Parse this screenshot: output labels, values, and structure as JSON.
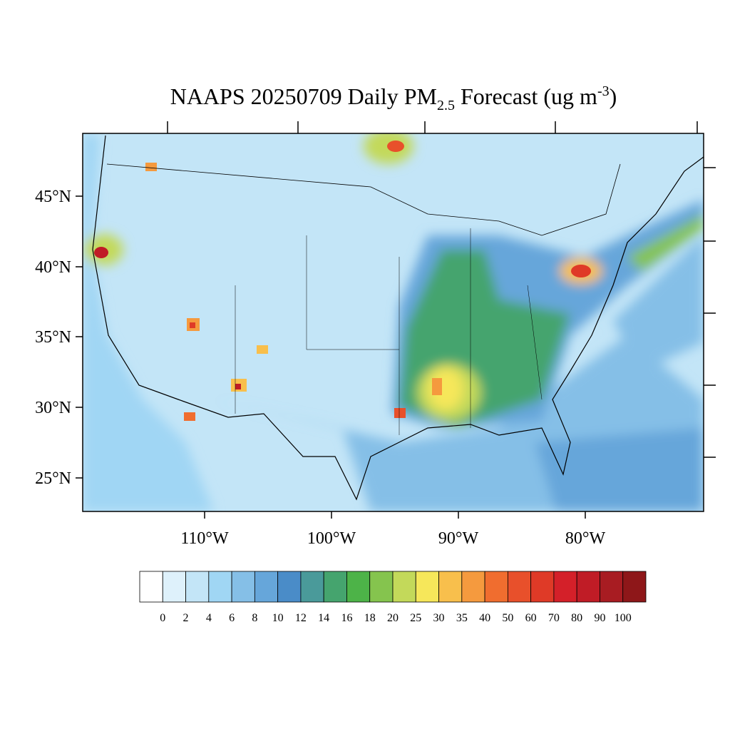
{
  "header": {
    "title_main": "NAAPS 20250709 Daily PM",
    "title_sub": "2.5",
    "title_mid": " Forecast (ug m",
    "title_sup": "-3",
    "title_end": ")"
  },
  "map": {
    "lat_labels": [
      "45°N",
      "40°N",
      "35°N",
      "30°N",
      "25°N"
    ],
    "lon_labels": [
      "110°W",
      "100°W",
      "90°W",
      "80°W"
    ]
  },
  "colorbar": {
    "levels": [
      0,
      2,
      4,
      6,
      8,
      10,
      12,
      14,
      16,
      18,
      20,
      25,
      30,
      35,
      40,
      50,
      60,
      70,
      80,
      90,
      100
    ],
    "colors": [
      "#ffffff",
      "#def1fb",
      "#c3e5f7",
      "#a0d6f4",
      "#85bfe7",
      "#66a6da",
      "#4a8cc8",
      "#4a9a9a",
      "#45a46e",
      "#4db348",
      "#85c44e",
      "#c3d95a",
      "#f6e75a",
      "#f8bf4c",
      "#f59a3e",
      "#f06d2f",
      "#e8502b",
      "#df3a27",
      "#d42029",
      "#c01c26",
      "#a81c22",
      "#8e1719"
    ]
  }
}
